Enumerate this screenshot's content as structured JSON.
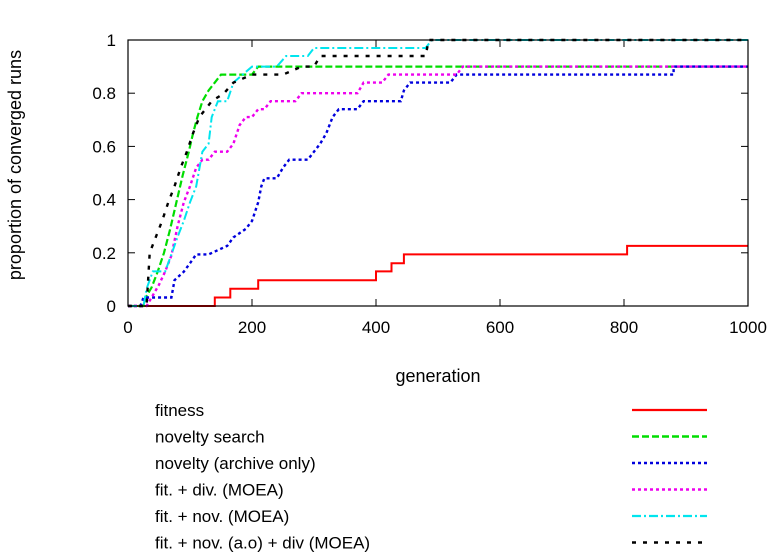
{
  "chart_data": {
    "type": "line",
    "title": "",
    "xlabel": "generation",
    "ylabel": "proportion of converged runs",
    "xlim": [
      0,
      1000
    ],
    "ylim": [
      0,
      1
    ],
    "xticks": [
      0,
      200,
      400,
      600,
      800,
      1000
    ],
    "xtick_labels": [
      "0",
      "200",
      "400",
      "600",
      "800",
      "1000"
    ],
    "yticks": [
      0,
      0.2,
      0.4,
      0.6,
      0.8,
      1
    ],
    "ytick_labels": [
      "0",
      "0.2",
      "0.4",
      "0.6",
      "0.8",
      "1"
    ],
    "grid": false,
    "legend_position": "below plot",
    "series": [
      {
        "name": "fitness",
        "color": "#ff0000",
        "dash": "solid",
        "points": [
          [
            0,
            0
          ],
          [
            140,
            0
          ],
          [
            140,
            0.032
          ],
          [
            165,
            0.032
          ],
          [
            165,
            0.065
          ],
          [
            195,
            0.065
          ],
          [
            195,
            0.065
          ],
          [
            210,
            0.065
          ],
          [
            210,
            0.097
          ],
          [
            400,
            0.097
          ],
          [
            400,
            0.13
          ],
          [
            425,
            0.13
          ],
          [
            425,
            0.161
          ],
          [
            445,
            0.161
          ],
          [
            445,
            0.194
          ],
          [
            805,
            0.194
          ],
          [
            805,
            0.226
          ],
          [
            1000,
            0.226
          ]
        ]
      },
      {
        "name": "novelty search",
        "color": "#00dd00",
        "dash": "dashed",
        "points": [
          [
            0,
            0
          ],
          [
            25,
            0
          ],
          [
            28,
            0.03
          ],
          [
            38,
            0.07
          ],
          [
            48,
            0.13
          ],
          [
            58,
            0.2
          ],
          [
            68,
            0.29
          ],
          [
            78,
            0.39
          ],
          [
            88,
            0.49
          ],
          [
            98,
            0.58
          ],
          [
            105,
            0.65
          ],
          [
            112,
            0.71
          ],
          [
            120,
            0.77
          ],
          [
            130,
            0.81
          ],
          [
            140,
            0.84
          ],
          [
            150,
            0.87
          ],
          [
            200,
            0.87
          ],
          [
            210,
            0.9
          ],
          [
            1000,
            0.9
          ]
        ]
      },
      {
        "name": "novelty (archive only)",
        "color": "#0000dd",
        "dash": "dotted",
        "points": [
          [
            0,
            0
          ],
          [
            20,
            0
          ],
          [
            25,
            0.032
          ],
          [
            70,
            0.032
          ],
          [
            75,
            0.097
          ],
          [
            90,
            0.129
          ],
          [
            100,
            0.161
          ],
          [
            110,
            0.194
          ],
          [
            130,
            0.194
          ],
          [
            160,
            0.226
          ],
          [
            170,
            0.258
          ],
          [
            190,
            0.29
          ],
          [
            200,
            0.32
          ],
          [
            210,
            0.39
          ],
          [
            215,
            0.45
          ],
          [
            220,
            0.48
          ],
          [
            240,
            0.48
          ],
          [
            250,
            0.52
          ],
          [
            260,
            0.55
          ],
          [
            290,
            0.55
          ],
          [
            300,
            0.58
          ],
          [
            310,
            0.61
          ],
          [
            320,
            0.65
          ],
          [
            330,
            0.71
          ],
          [
            340,
            0.74
          ],
          [
            370,
            0.74
          ],
          [
            380,
            0.77
          ],
          [
            440,
            0.77
          ],
          [
            445,
            0.81
          ],
          [
            455,
            0.84
          ],
          [
            520,
            0.84
          ],
          [
            530,
            0.87
          ],
          [
            880,
            0.87
          ],
          [
            880,
            0.9
          ],
          [
            1000,
            0.9
          ]
        ]
      },
      {
        "name": "fit. + div. (MOEA)",
        "color": "#ee00ee",
        "dash": "dotted",
        "points": [
          [
            0,
            0
          ],
          [
            30,
            0
          ],
          [
            40,
            0.04
          ],
          [
            50,
            0.08
          ],
          [
            60,
            0.13
          ],
          [
            70,
            0.19
          ],
          [
            80,
            0.3
          ],
          [
            90,
            0.39
          ],
          [
            100,
            0.45
          ],
          [
            110,
            0.52
          ],
          [
            120,
            0.55
          ],
          [
            130,
            0.55
          ],
          [
            140,
            0.58
          ],
          [
            150,
            0.58
          ],
          [
            160,
            0.58
          ],
          [
            170,
            0.61
          ],
          [
            180,
            0.68
          ],
          [
            190,
            0.71
          ],
          [
            200,
            0.71
          ],
          [
            210,
            0.74
          ],
          [
            220,
            0.74
          ],
          [
            230,
            0.77
          ],
          [
            270,
            0.77
          ],
          [
            280,
            0.8
          ],
          [
            370,
            0.8
          ],
          [
            380,
            0.84
          ],
          [
            410,
            0.84
          ],
          [
            420,
            0.87
          ],
          [
            530,
            0.87
          ],
          [
            540,
            0.9
          ],
          [
            1000,
            0.9
          ]
        ]
      },
      {
        "name": "fit. + nov. (MOEA)",
        "color": "#00e5ee",
        "dash": "dashdot",
        "points": [
          [
            0,
            0
          ],
          [
            25,
            0
          ],
          [
            30,
            0.065
          ],
          [
            40,
            0.13
          ],
          [
            60,
            0.13
          ],
          [
            70,
            0.194
          ],
          [
            80,
            0.26
          ],
          [
            90,
            0.32
          ],
          [
            100,
            0.39
          ],
          [
            110,
            0.45
          ],
          [
            120,
            0.58
          ],
          [
            130,
            0.61
          ],
          [
            135,
            0.71
          ],
          [
            145,
            0.77
          ],
          [
            160,
            0.77
          ],
          [
            170,
            0.84
          ],
          [
            185,
            0.87
          ],
          [
            200,
            0.9
          ],
          [
            240,
            0.9
          ],
          [
            255,
            0.94
          ],
          [
            290,
            0.94
          ],
          [
            300,
            0.97
          ],
          [
            480,
            0.97
          ],
          [
            490,
            1.0
          ],
          [
            1000,
            1.0
          ]
        ]
      },
      {
        "name": "fit. + nov. (a.o) + div (MOEA)",
        "color": "#000000",
        "dash": "loose",
        "points": [
          [
            0,
            0
          ],
          [
            30,
            0
          ],
          [
            35,
            0.2
          ],
          [
            45,
            0.26
          ],
          [
            55,
            0.32
          ],
          [
            65,
            0.39
          ],
          [
            75,
            0.45
          ],
          [
            85,
            0.52
          ],
          [
            95,
            0.58
          ],
          [
            105,
            0.65
          ],
          [
            115,
            0.71
          ],
          [
            125,
            0.74
          ],
          [
            135,
            0.77
          ],
          [
            155,
            0.8
          ],
          [
            170,
            0.84
          ],
          [
            200,
            0.87
          ],
          [
            240,
            0.87
          ],
          [
            250,
            0.87
          ],
          [
            280,
            0.9
          ],
          [
            300,
            0.9
          ],
          [
            310,
            0.94
          ],
          [
            480,
            0.94
          ],
          [
            485,
            1.0
          ],
          [
            1000,
            1.0
          ]
        ]
      }
    ]
  }
}
